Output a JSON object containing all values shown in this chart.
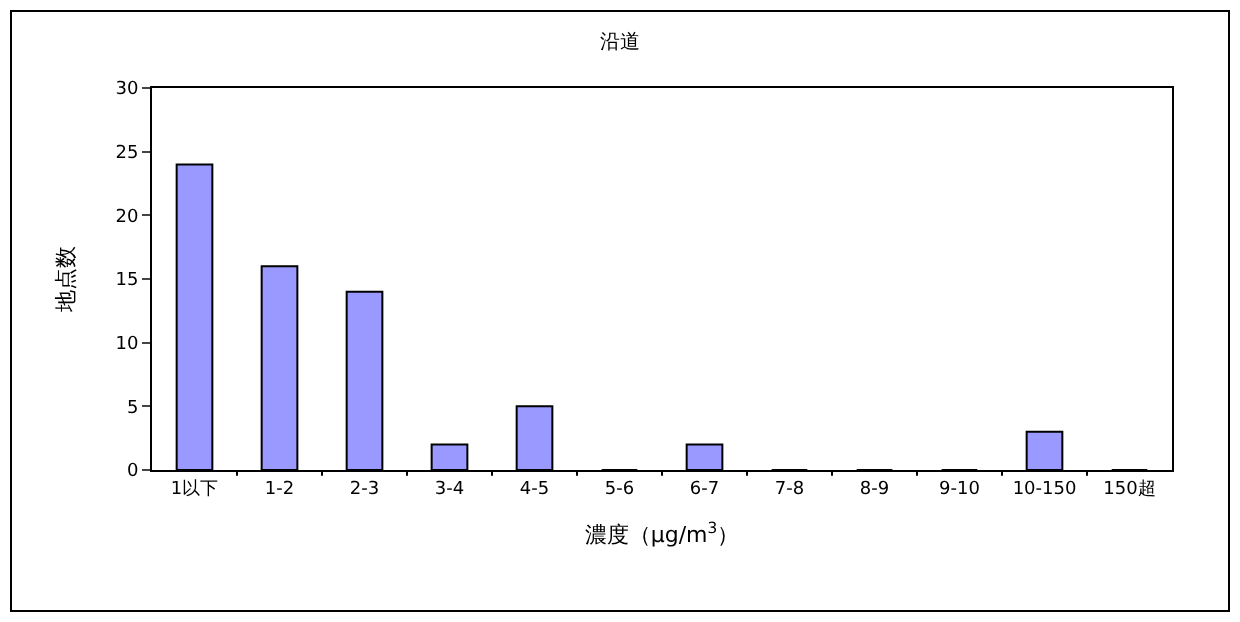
{
  "chart_data": {
    "type": "bar",
    "title": "沿道",
    "xlabel": "濃度（μg/m$^{3}$）",
    "ylabel": "地点数",
    "categories": [
      "1以下",
      "1-2",
      "2-3",
      "3-4",
      "4-5",
      "5-6",
      "6-7",
      "7-8",
      "8-9",
      "9-10",
      "10-150",
      "150超"
    ],
    "values": [
      24,
      16,
      14,
      2,
      5,
      0,
      2,
      0,
      0,
      0,
      3,
      0
    ],
    "color": "#9999ff",
    "ylim": [
      0,
      30
    ],
    "yticks": [
      0,
      5,
      10,
      15,
      20,
      25,
      30
    ],
    "grid": false,
    "legend": false
  }
}
